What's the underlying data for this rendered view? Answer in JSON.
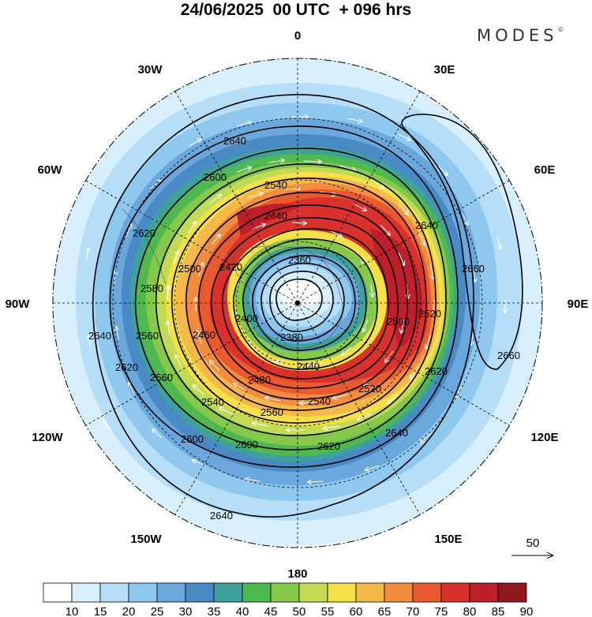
{
  "header": {
    "title": "24/06/2025  00 UTC  + 096 hrs",
    "brand": "MODES",
    "brand_mark": "©"
  },
  "map": {
    "projection": "south-polar-stereographic",
    "longitude_labels": {
      "top": "0",
      "top_right": "30E",
      "right_upper": "60E",
      "right": "90E",
      "right_lower": "120E",
      "bottom_right": "150E",
      "bottom": "180",
      "bottom_left": "150W",
      "left_lower": "120W",
      "left": "90W",
      "left_upper": "60W",
      "top_left": "30W"
    },
    "contour_labels": [
      "2360",
      "2380",
      "2400",
      "2420",
      "2440",
      "2460",
      "2480",
      "2500",
      "2520",
      "2540",
      "2560",
      "2580",
      "2600",
      "2620",
      "2640",
      "2660"
    ],
    "vector_reference": {
      "label": "50",
      "icon": "arrow-right-icon"
    }
  },
  "colorbar": {
    "ticks": [
      "10",
      "15",
      "20",
      "25",
      "30",
      "35",
      "40",
      "45",
      "50",
      "55",
      "60",
      "65",
      "70",
      "75",
      "80",
      "85",
      "90"
    ],
    "colors": [
      "#ffffff",
      "#d8f0fd",
      "#b6def8",
      "#8fc8ef",
      "#6aa7dc",
      "#4a8ac4",
      "#3ea29b",
      "#4fb84f",
      "#86c84a",
      "#c2da54",
      "#f6e04a",
      "#f5b94a",
      "#f38c3e",
      "#ea5a2f",
      "#d9322c",
      "#bd1f2b",
      "#8e1a1f"
    ]
  }
}
